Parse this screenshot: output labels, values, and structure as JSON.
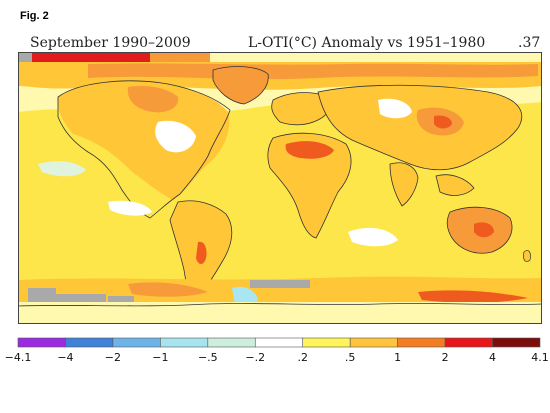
{
  "figure_label": "Fig. 2",
  "header": {
    "period": "September 1990–2009",
    "title": "L-OTI(°C) Anomaly vs 1951–1980",
    "global_mean": ".37"
  },
  "legend": {
    "ticks": [
      "−4.1",
      "−4",
      "−2",
      "−1",
      "−.5",
      "−.2",
      ".2",
      ".5",
      "1",
      "2",
      "4",
      "4.1"
    ],
    "colors": [
      "#9a2be0",
      "#3f82d8",
      "#6db3e8",
      "#a6e4f0",
      "#cdeedd",
      "#ffffff",
      "#fff45a",
      "#ffc43b",
      "#f47d24",
      "#e8151b",
      "#7d0d0d"
    ]
  },
  "map_colors": {
    "ocean_base": "#fff9b0",
    "ocean_mid": "#fde64a",
    "warm": "#ffc638",
    "hot": "#f79b3a",
    "very_hot": "#ef5a1f",
    "extreme": "#e21b1b",
    "cool": "#dff3df",
    "neutral": "#ffffff",
    "missing": "#a9a9a9",
    "cold": "#a8e6f2"
  }
}
